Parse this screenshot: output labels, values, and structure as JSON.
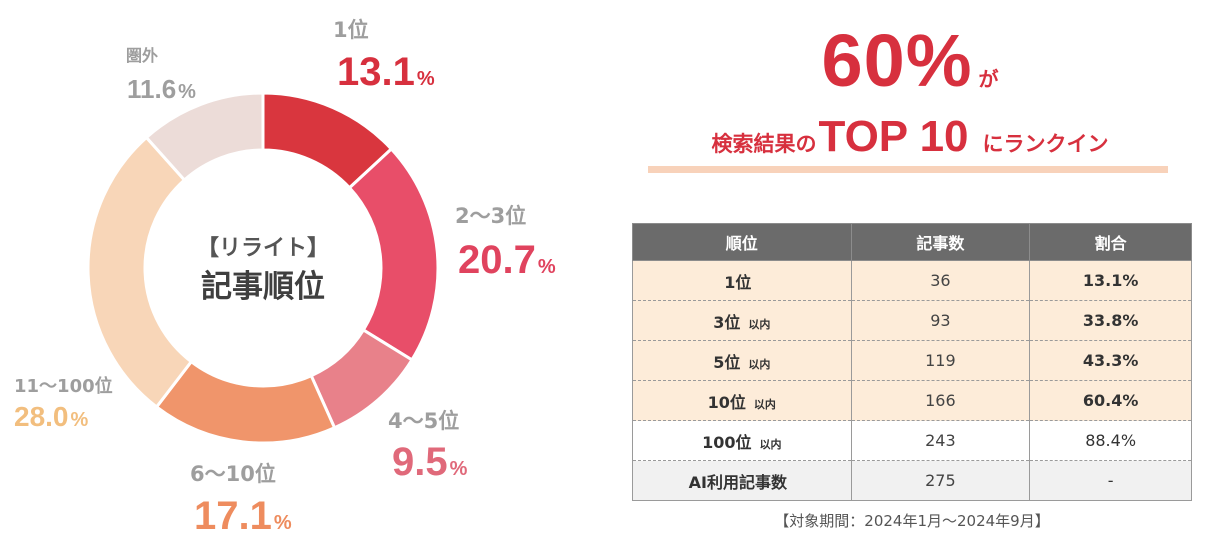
{
  "chart_data": {
    "type": "pie",
    "donut": true,
    "center_label": {
      "line1": "【リライト】",
      "line2": "記事順位"
    },
    "slices": [
      {
        "label": "1位",
        "value": 13.1,
        "display": "13.1",
        "unit": "%",
        "color": "#d9363e",
        "label_color": "#9e9e9e",
        "value_color": "#d7303e"
      },
      {
        "label": "2〜3位",
        "value": 20.7,
        "display": "20.7",
        "unit": "%",
        "color": "#e84e69",
        "label_color": "#9e9e9e",
        "value_color": "#e0435e"
      },
      {
        "label": "4〜5位",
        "value": 9.5,
        "display": "9.5",
        "unit": "%",
        "color": "#e8818a",
        "label_color": "#9e9e9e",
        "value_color": "#e0697a"
      },
      {
        "label": "6〜10位",
        "value": 17.1,
        "display": "17.1",
        "unit": "%",
        "color": "#f0956b",
        "label_color": "#9e9e9e",
        "value_color": "#ee8c5e"
      },
      {
        "label": "11〜100位",
        "value": 28.0,
        "display": "28.0",
        "unit": "%",
        "color": "#f8d6b8",
        "label_color": "#9e9e9e",
        "value_color": "#f2be7e"
      },
      {
        "label": "圏外",
        "value": 11.6,
        "display": "11.6",
        "unit": "%",
        "color": "#ecdcd8",
        "label_color": "#9e9e9e",
        "value_color": "#9e9e9e"
      }
    ]
  },
  "headline": {
    "big": "60%",
    "ga": "が",
    "sub_a": "検索結果の",
    "sub_b": "TOP 10",
    "sub_c": "にランクイン",
    "accent": "#d7303e"
  },
  "table": {
    "headers": [
      "順位",
      "記事数",
      "割合"
    ],
    "rows": [
      {
        "rank": "1位",
        "suffix": "",
        "count": "36",
        "ratio": "13.1%",
        "bg": "#fdecd9",
        "bold": true
      },
      {
        "rank": "3位",
        "suffix": "以内",
        "count": "93",
        "ratio": "33.8%",
        "bg": "#fdecd9",
        "bold": true
      },
      {
        "rank": "5位",
        "suffix": "以内",
        "count": "119",
        "ratio": "43.3%",
        "bg": "#fdecd9",
        "bold": true
      },
      {
        "rank": "10位",
        "suffix": "以内",
        "count": "166",
        "ratio": "60.4%",
        "bg": "#fdecd9",
        "bold": true
      },
      {
        "rank": "100位",
        "suffix": "以内",
        "count": "243",
        "ratio": "88.4%",
        "bg": "#ffffff",
        "bold": false
      },
      {
        "rank": "AI利用記事数",
        "suffix": "",
        "count": "275",
        "ratio": "-",
        "bg": "#f1f1f1",
        "bold": false
      }
    ]
  },
  "period": "【対象期間：2024年1月〜2024年9月】"
}
